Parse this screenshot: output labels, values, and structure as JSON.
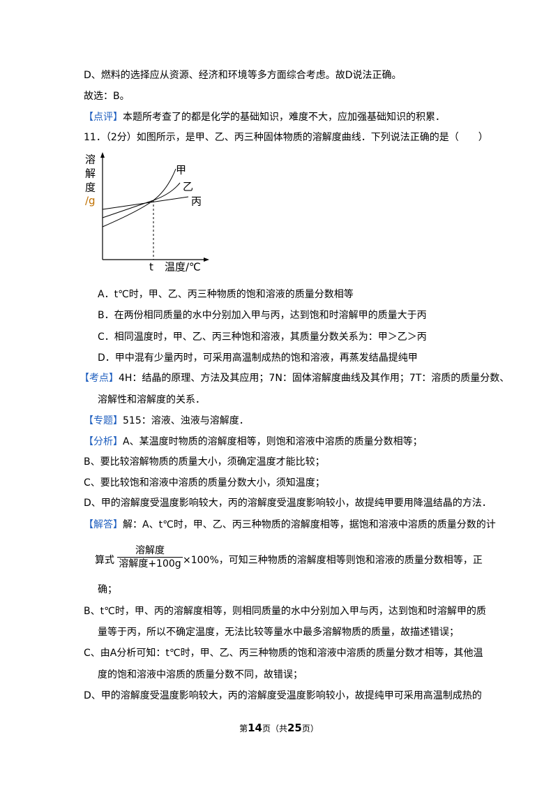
{
  "prev": {
    "line_d": "D、燃料的选择应从资源、经济和环境等多方面综合考虑。故D说法正确。",
    "answer": "故选：B。",
    "comment": {
      "tag": "【点评】",
      "text": "本题所考查了的都是化学的基础知识，难度不大，应加强基础知识的积累．"
    }
  },
  "question": {
    "stem": "11．（2分）如图所示，是甲、乙、丙三种固体物质的溶解度曲线．下列说法正确的是（　　）",
    "figure": {
      "y_label": [
        "溶",
        "解",
        "度",
        "/g"
      ],
      "curves": [
        "甲",
        "乙",
        "丙"
      ],
      "x_tick": "t",
      "x_label": "温度/℃"
    },
    "options": [
      "A．t℃时，甲、乙、丙三种物质的饱和溶液的质量分数相等",
      "B．在两份相同质量的水中分别加入甲与丙，达到饱和时溶解甲的质量大于丙",
      "C．相同温度时，甲、乙、丙三种饱和溶液，其质量分数关系为：甲＞乙＞丙",
      "D．甲中混有少量丙时，可采用高温制成热的饱和溶液，再蒸发结晶提纯甲"
    ]
  },
  "points": {
    "tag": "【考点】",
    "lines": [
      "4H：结晶的原理、方法及其应用；7N：固体溶解度曲线及其作用；7T：溶质的质量分数、",
      "溶解性和溶解度的关系．"
    ]
  },
  "topic": {
    "tag": "【专题】",
    "text": "515：溶液、浊液与溶解度．"
  },
  "analysis": {
    "tag": "【分析】",
    "lines": [
      "A、某温度时物质的溶解度相等，则饱和溶液中溶质的质量分数相等；",
      "B、要比较溶解物质的质量大小，须确定温度才能比较；",
      "C、要比较饱和溶液中溶质的质量分数大小，须知温度；",
      "D、甲的溶解度受温度影响较大，丙的溶解度受温度影响较小，故提纯甲要用降温结晶的方法．"
    ]
  },
  "solution": {
    "tag": "【解答】",
    "intro": "解：A、t℃时，甲、乙、丙三种物质的溶解度相等，据饱和溶液中溶质的质量分数的计",
    "formula": {
      "prefix": "算式",
      "numerator": "溶解度",
      "denominator": "溶解度+100g",
      "suffix": "×100%，可知三种物质的溶解度相等则饱和溶液的质量分数相等，正"
    },
    "a_end": "确；",
    "b": [
      "B、t℃时，甲、丙的溶解度相等，则相同质量的水中分别加入甲与丙，达到饱和时溶解甲的质",
      "量等于丙，所以不确定温度，无法比较等量水中最多溶解物质的质量，故描述错误；"
    ],
    "c": [
      "C、由A分析可知：t℃时，甲、乙、丙三种物质的饱和溶液中溶质的质量分数才相等，其他温",
      "度的饱和溶液中溶质的质量分数不同，故错误；"
    ],
    "d": [
      "D、甲的溶解度受温度影响较大，丙的溶解度受温度影响较小，故提纯甲可采用高温制成热的"
    ]
  },
  "footer": {
    "pre": "第",
    "page": "14",
    "mid": "页（共",
    "total": "25",
    "post": "页）"
  }
}
